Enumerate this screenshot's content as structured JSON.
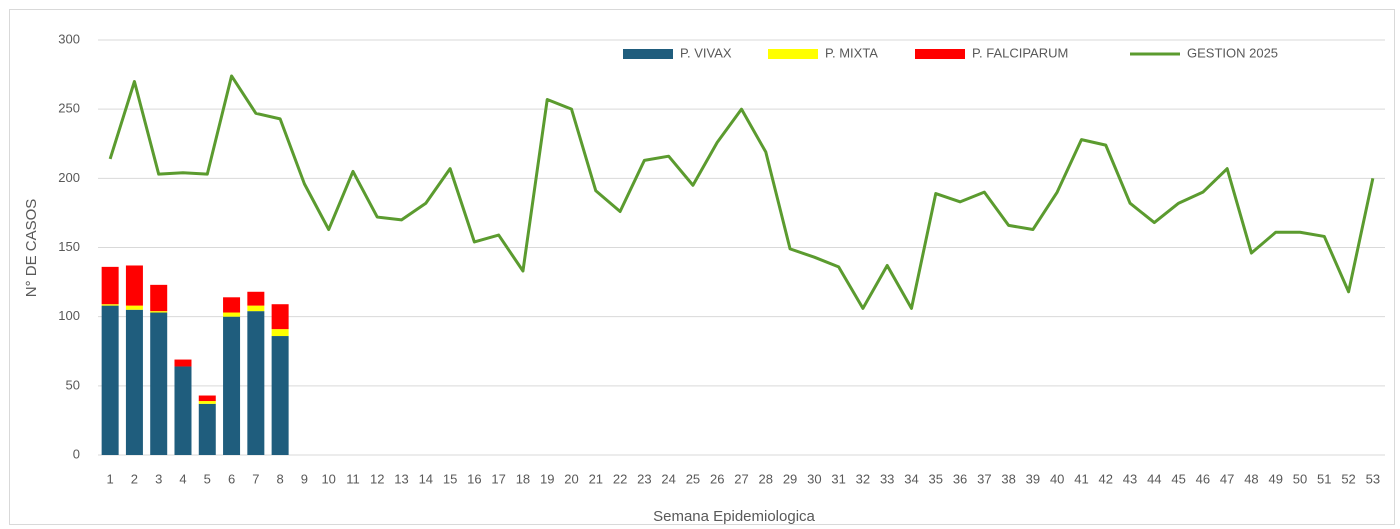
{
  "chart_data": {
    "type": "bar",
    "stacked": true,
    "x_label": "Semana Epidemiologica",
    "y_label": "N° DE CASOS",
    "categories": [
      "1",
      "2",
      "3",
      "4",
      "5",
      "6",
      "7",
      "8",
      "9",
      "10",
      "11",
      "12",
      "13",
      "14",
      "15",
      "16",
      "17",
      "18",
      "19",
      "20",
      "21",
      "22",
      "23",
      "24",
      "25",
      "26",
      "27",
      "28",
      "29",
      "30",
      "31",
      "32",
      "33",
      "34",
      "35",
      "36",
      "37",
      "38",
      "39",
      "40",
      "41",
      "42",
      "43",
      "44",
      "45",
      "46",
      "47",
      "48",
      "49",
      "50",
      "51",
      "52",
      "53"
    ],
    "series": [
      {
        "name": "P. VIVAX",
        "color": "#1f5d7d",
        "values": [
          108,
          105,
          103,
          64,
          37,
          100,
          104,
          86,
          null,
          null,
          null,
          null,
          null,
          null,
          null,
          null,
          null,
          null,
          null,
          null,
          null,
          null,
          null,
          null,
          null,
          null,
          null,
          null,
          null,
          null,
          null,
          null,
          null,
          null,
          null,
          null,
          null,
          null,
          null,
          null,
          null,
          null,
          null,
          null,
          null,
          null,
          null,
          null,
          null,
          null,
          null,
          null,
          null
        ]
      },
      {
        "name": "P. MIXTA",
        "color": "#ffff00",
        "values": [
          1,
          3,
          1,
          0,
          2,
          3,
          4,
          5,
          null,
          null,
          null,
          null,
          null,
          null,
          null,
          null,
          null,
          null,
          null,
          null,
          null,
          null,
          null,
          null,
          null,
          null,
          null,
          null,
          null,
          null,
          null,
          null,
          null,
          null,
          null,
          null,
          null,
          null,
          null,
          null,
          null,
          null,
          null,
          null,
          null,
          null,
          null,
          null,
          null,
          null,
          null,
          null,
          null
        ]
      },
      {
        "name": "P. FALCIPARUM",
        "color": "#ff0000",
        "values": [
          27,
          29,
          19,
          5,
          4,
          11,
          10,
          18,
          null,
          null,
          null,
          null,
          null,
          null,
          null,
          null,
          null,
          null,
          null,
          null,
          null,
          null,
          null,
          null,
          null,
          null,
          null,
          null,
          null,
          null,
          null,
          null,
          null,
          null,
          null,
          null,
          null,
          null,
          null,
          null,
          null,
          null,
          null,
          null,
          null,
          null,
          null,
          null,
          null,
          null,
          null,
          null,
          null
        ]
      },
      {
        "name": "GESTION 2025",
        "type": "line",
        "color": "#5b9b2f",
        "values": [
          214,
          270,
          203,
          204,
          203,
          274,
          247,
          243,
          196,
          163,
          205,
          172,
          170,
          182,
          207,
          154,
          159,
          133,
          257,
          250,
          191,
          176,
          213,
          216,
          195,
          226,
          250,
          219,
          149,
          143,
          136,
          106,
          137,
          106,
          189,
          183,
          190,
          166,
          163,
          190,
          228,
          224,
          182,
          168,
          182,
          190,
          207,
          146,
          161,
          161,
          158,
          118,
          200
        ]
      }
    ],
    "ylim": [
      0,
      300
    ],
    "yticks": [
      0,
      50,
      100,
      150,
      200,
      250,
      300
    ],
    "grid": true,
    "legend": "top"
  }
}
